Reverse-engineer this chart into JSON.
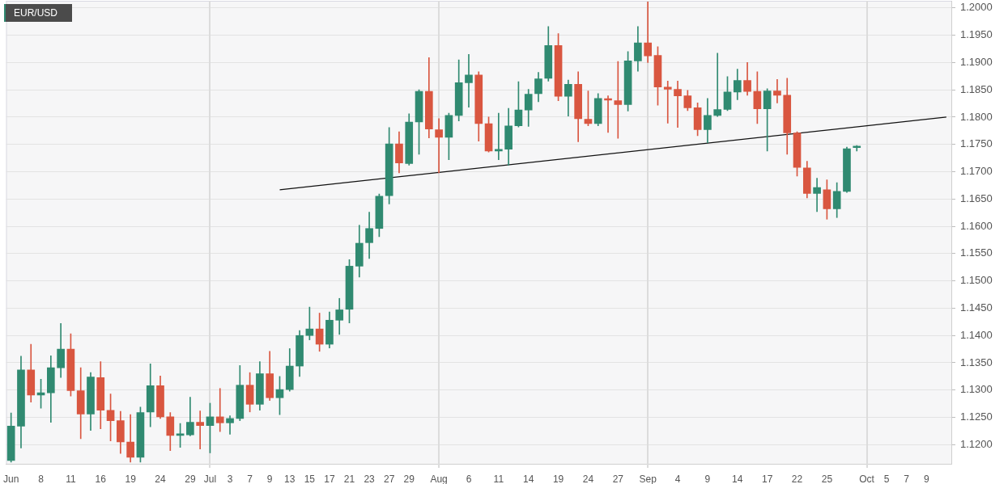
{
  "chart_data": {
    "type": "candlestick",
    "title": "EUR/USD",
    "categories": [
      "Jun",
      null,
      null,
      "8",
      null,
      null,
      "11",
      null,
      null,
      "16",
      null,
      null,
      "19",
      null,
      null,
      "24",
      null,
      null,
      "29",
      null,
      "Jul",
      null,
      "3",
      null,
      "7",
      null,
      "9",
      null,
      "13",
      null,
      "15",
      null,
      "17",
      null,
      "21",
      null,
      "23",
      null,
      "27",
      null,
      "29",
      null,
      null,
      "Aug",
      null,
      null,
      "6",
      null,
      null,
      "11",
      null,
      null,
      "14",
      null,
      null,
      "19",
      null,
      null,
      "24",
      null,
      null,
      "27",
      null,
      null,
      "Sep",
      null,
      null,
      "4",
      null,
      null,
      "9",
      null,
      null,
      "14",
      null,
      null,
      "17",
      null,
      null,
      "22",
      null,
      null,
      "25",
      null,
      null,
      null,
      "Oct",
      null,
      "5",
      null,
      "7",
      null,
      "9",
      null,
      null
    ],
    "ohlc": [
      [
        1.1171,
        1.1258,
        1.1168,
        1.1234
      ],
      [
        1.1234,
        1.1362,
        1.1194,
        1.1337
      ],
      [
        1.1337,
        1.1384,
        1.1278,
        1.1291
      ],
      [
        1.1291,
        1.132,
        1.1267,
        1.1295
      ],
      [
        1.1295,
        1.1363,
        1.1241,
        1.1341
      ],
      [
        1.1341,
        1.1422,
        1.1323,
        1.1375
      ],
      [
        1.1375,
        1.1403,
        1.1289,
        1.1299
      ],
      [
        1.1299,
        1.1341,
        1.1211,
        1.1256
      ],
      [
        1.1256,
        1.1332,
        1.1226,
        1.1324
      ],
      [
        1.1323,
        1.1352,
        1.1229,
        1.1263
      ],
      [
        1.1263,
        1.1293,
        1.1207,
        1.1244
      ],
      [
        1.1244,
        1.1261,
        1.1184,
        1.1205
      ],
      [
        1.1205,
        1.1255,
        1.1168,
        1.1177
      ],
      [
        1.1177,
        1.1269,
        1.1168,
        1.1259
      ],
      [
        1.126,
        1.1348,
        1.1233,
        1.1308
      ],
      [
        1.1308,
        1.1326,
        1.1248,
        1.1251
      ],
      [
        1.1251,
        1.1259,
        1.1189,
        1.1217
      ],
      [
        1.1217,
        1.1239,
        1.1195,
        1.1219
      ],
      [
        1.1218,
        1.1287,
        1.1216,
        1.1241
      ],
      [
        1.1241,
        1.1262,
        1.1192,
        1.1235
      ],
      [
        1.1235,
        1.1276,
        1.1185,
        1.1251
      ],
      [
        1.1251,
        1.1303,
        1.1224,
        1.124
      ],
      [
        1.124,
        1.1253,
        1.1219,
        1.1248
      ],
      [
        1.1248,
        1.1345,
        1.1244,
        1.1309
      ],
      [
        1.1309,
        1.1332,
        1.126,
        1.1274
      ],
      [
        1.1274,
        1.1352,
        1.1263,
        1.133
      ],
      [
        1.133,
        1.1371,
        1.1281,
        1.1286
      ],
      [
        1.1286,
        1.1325,
        1.1255,
        1.1301
      ],
      [
        1.1301,
        1.1376,
        1.1298,
        1.1344
      ],
      [
        1.1344,
        1.1409,
        1.1325,
        1.14
      ],
      [
        1.14,
        1.1452,
        1.1392,
        1.1412
      ],
      [
        1.1412,
        1.1441,
        1.1371,
        1.1384
      ],
      [
        1.1384,
        1.1443,
        1.1377,
        1.1428
      ],
      [
        1.1428,
        1.1468,
        1.1402,
        1.1447
      ],
      [
        1.1448,
        1.1539,
        1.1423,
        1.1527
      ],
      [
        1.1527,
        1.1602,
        1.1507,
        1.1569
      ],
      [
        1.157,
        1.1626,
        1.1541,
        1.1596
      ],
      [
        1.1596,
        1.1659,
        1.1581,
        1.1655
      ],
      [
        1.1656,
        1.1781,
        1.1641,
        1.1751
      ],
      [
        1.1751,
        1.1773,
        1.1698,
        1.1716
      ],
      [
        1.1715,
        1.1806,
        1.1712,
        1.1791
      ],
      [
        1.1791,
        1.185,
        1.1732,
        1.1847
      ],
      [
        1.1847,
        1.1909,
        1.1762,
        1.1778
      ],
      [
        1.1777,
        1.1797,
        1.1698,
        1.1763
      ],
      [
        1.1763,
        1.1807,
        1.1722,
        1.1803
      ],
      [
        1.1803,
        1.1905,
        1.1793,
        1.1863
      ],
      [
        1.1863,
        1.1915,
        1.1818,
        1.1877
      ],
      [
        1.1877,
        1.1883,
        1.1756,
        1.1788
      ],
      [
        1.1788,
        1.18,
        1.1736,
        1.1738
      ],
      [
        1.1738,
        1.1807,
        1.1722,
        1.1741
      ],
      [
        1.1741,
        1.1816,
        1.1712,
        1.1784
      ],
      [
        1.1784,
        1.1865,
        1.1782,
        1.1813
      ],
      [
        1.1813,
        1.1851,
        1.1783,
        1.1842
      ],
      [
        1.1843,
        1.1882,
        1.1828,
        1.187
      ],
      [
        1.1871,
        1.1966,
        1.1866,
        1.1931
      ],
      [
        1.1931,
        1.1953,
        1.183,
        1.1838
      ],
      [
        1.1838,
        1.1868,
        1.1802,
        1.186
      ],
      [
        1.186,
        1.1883,
        1.1755,
        1.1797
      ],
      [
        1.1796,
        1.1848,
        1.1784,
        1.1788
      ],
      [
        1.1788,
        1.1843,
        1.1784,
        1.1834
      ],
      [
        1.1833,
        1.1839,
        1.1772,
        1.1831
      ],
      [
        1.183,
        1.1902,
        1.1761,
        1.1823
      ],
      [
        1.1823,
        1.192,
        1.1811,
        1.1903
      ],
      [
        1.1903,
        1.1966,
        1.1884,
        1.1936
      ],
      [
        1.1936,
        1.2011,
        1.19,
        1.1912
      ],
      [
        1.1913,
        1.1929,
        1.1822,
        1.1855
      ],
      [
        1.1855,
        1.1866,
        1.1789,
        1.1851
      ],
      [
        1.1851,
        1.1866,
        1.1781,
        1.1839
      ],
      [
        1.1839,
        1.1849,
        1.1812,
        1.1817
      ],
      [
        1.1817,
        1.1826,
        1.1766,
        1.1777
      ],
      [
        1.1777,
        1.1834,
        1.1753,
        1.1803
      ],
      [
        1.1803,
        1.1917,
        1.1801,
        1.1814
      ],
      [
        1.1814,
        1.1874,
        1.1812,
        1.1846
      ],
      [
        1.1846,
        1.1888,
        1.1832,
        1.1867
      ],
      [
        1.1867,
        1.19,
        1.184,
        1.1847
      ],
      [
        1.1847,
        1.1883,
        1.1788,
        1.1815
      ],
      [
        1.1815,
        1.1852,
        1.1738,
        1.1848
      ],
      [
        1.1848,
        1.1869,
        1.1826,
        1.184
      ],
      [
        1.184,
        1.1871,
        1.1732,
        1.1771
      ],
      [
        1.1771,
        1.1773,
        1.1692,
        1.1708
      ],
      [
        1.1707,
        1.1719,
        1.1652,
        1.166
      ],
      [
        1.166,
        1.1688,
        1.1627,
        1.1671
      ],
      [
        1.1667,
        1.1685,
        1.1613,
        1.1632
      ],
      [
        1.1632,
        1.168,
        1.1616,
        1.1664
      ],
      [
        1.1664,
        1.1745,
        1.1662,
        1.1742
      ],
      [
        1.1744,
        1.1748,
        1.1738,
        1.1746
      ],
      null,
      null,
      null,
      null,
      null,
      null,
      null,
      null,
      null
    ],
    "colors": [
      "#308a71",
      "#308a71",
      "#d95640",
      "#308a71",
      "#308a71",
      "#308a71",
      "#d95640",
      "#d95640",
      "#308a71",
      "#d95640",
      "#d95640",
      "#d95640",
      "#d95640",
      "#308a71",
      "#308a71",
      "#d95640",
      "#d95640",
      "#308a71",
      "#308a71",
      "#d95640",
      "#308a71",
      "#d95640",
      "#308a71",
      "#308a71",
      "#d95640",
      "#308a71",
      "#d95640",
      "#308a71",
      "#308a71",
      "#308a71",
      "#308a71",
      "#d95640",
      "#308a71",
      "#308a71",
      "#308a71",
      "#308a71",
      "#308a71",
      "#308a71",
      "#308a71",
      "#d95640",
      "#308a71",
      "#308a71",
      "#d95640",
      "#d95640",
      "#308a71",
      "#308a71",
      "#308a71",
      "#d95640",
      "#d95640",
      "#308a71",
      "#308a71",
      "#308a71",
      "#308a71",
      "#308a71",
      "#308a71",
      "#d95640",
      "#308a71",
      "#d95640",
      "#d95640",
      "#308a71",
      "#d95640",
      "#d95640",
      "#308a71",
      "#308a71",
      "#d95640",
      "#d95640",
      "#d95640",
      "#d95640",
      "#d95640",
      "#d95640",
      "#308a71",
      "#308a71",
      "#308a71",
      "#308a71",
      "#d95640",
      "#d95640",
      "#308a71",
      "#d95640",
      "#d95640",
      "#d95640",
      "#d95640",
      "#308a71",
      "#d95640",
      "#308a71",
      "#308a71",
      "#308a71",
      null,
      null,
      null,
      null,
      null,
      null,
      null,
      null,
      null
    ],
    "series": [
      {
        "type": "line",
        "color": "#111111",
        "values": [
          null,
          null,
          null,
          null,
          null,
          null,
          null,
          null,
          null,
          null,
          null,
          null,
          null,
          null,
          null,
          null,
          null,
          null,
          null,
          null,
          null,
          null,
          null,
          null,
          null,
          null,
          null,
          1.1667,
          null,
          null,
          null,
          null,
          null,
          null,
          null,
          null,
          null,
          null,
          null,
          null,
          null,
          null,
          null,
          null,
          null,
          null,
          null,
          null,
          null,
          null,
          null,
          null,
          null,
          null,
          null,
          null,
          null,
          null,
          null,
          null,
          null,
          null,
          null,
          null,
          null,
          null,
          null,
          null,
          null,
          null,
          null,
          null,
          null,
          null,
          null,
          null,
          null,
          null,
          null,
          null,
          null,
          null,
          null,
          null,
          null,
          null,
          null,
          null,
          null,
          null,
          null,
          null,
          null,
          null,
          1.18
        ]
      }
    ],
    "ylim": [
      1.1165,
      1.2013
    ],
    "yticks": [
      {
        "value": 1.12,
        "label": "1.1200"
      },
      {
        "value": 1.125,
        "label": "1.1250"
      },
      {
        "value": 1.13,
        "label": "1.1300"
      },
      {
        "value": 1.135,
        "label": "1.1350"
      },
      {
        "value": 1.14,
        "label": "1.1400"
      },
      {
        "value": 1.145,
        "label": "1.1450"
      },
      {
        "value": 1.15,
        "label": "1.1500"
      },
      {
        "value": 1.155,
        "label": "1.1550"
      },
      {
        "value": 1.16,
        "label": "1.1600"
      },
      {
        "value": 1.165,
        "label": "1.1650"
      },
      {
        "value": 1.17,
        "label": "1.1700"
      },
      {
        "value": 1.175,
        "label": "1.1750"
      },
      {
        "value": 1.18,
        "label": "1.1800"
      },
      {
        "value": 1.185,
        "label": "1.1850"
      },
      {
        "value": 1.19,
        "label": "1.1900"
      },
      {
        "value": 1.195,
        "label": "1.1950"
      },
      {
        "value": 1.2,
        "label": "1.2000"
      }
    ],
    "ref_lines": [
      {
        "axis": "x",
        "value": "Jul",
        "color": "#dcdcdc"
      },
      {
        "axis": "x",
        "value": "Aug",
        "color": "#dcdcdc"
      },
      {
        "axis": "x",
        "value": "Sep",
        "color": "#dcdcdc"
      },
      {
        "axis": "x",
        "value": "Oct",
        "color": "#dcdcdc"
      }
    ],
    "grid": "y"
  }
}
